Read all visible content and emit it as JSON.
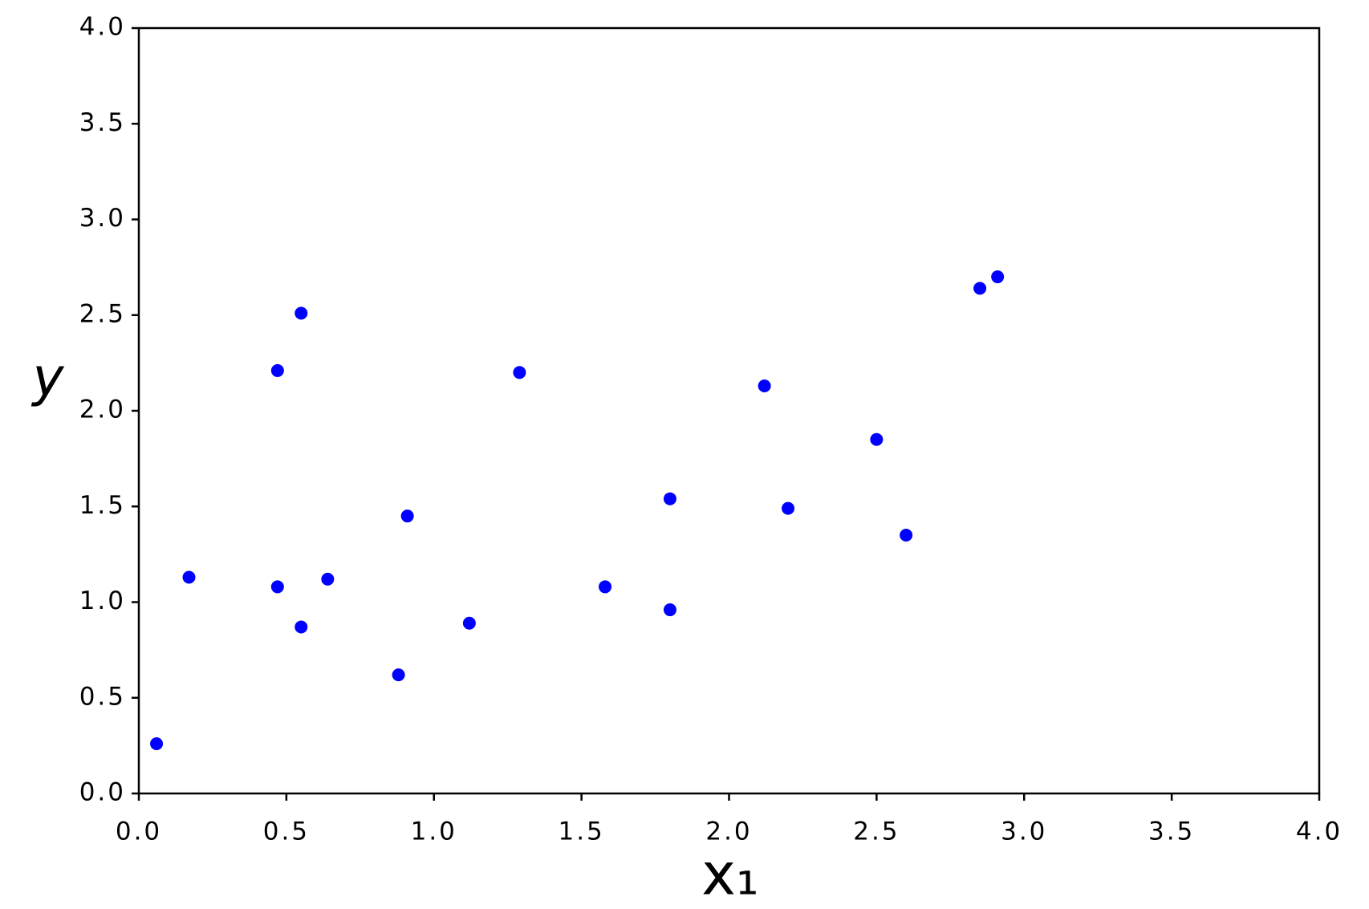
{
  "chart_data": {
    "type": "scatter",
    "xlabel": "x₁",
    "ylabel": "y",
    "color": "#0000ff",
    "series": [
      {
        "color": "#0000ff",
        "x": [
          0.06,
          0.17,
          0.47,
          0.55,
          0.47,
          0.55,
          0.64,
          0.88,
          0.91,
          1.12,
          1.29,
          1.58,
          1.8,
          1.8,
          2.12,
          2.2,
          2.5,
          2.6,
          2.85,
          2.91
        ],
        "values": [
          0.26,
          1.13,
          2.21,
          2.51,
          1.08,
          0.87,
          1.12,
          0.62,
          1.45,
          0.89,
          2.2,
          1.08,
          0.96,
          1.54,
          2.13,
          1.49,
          1.85,
          1.35,
          2.64,
          2.7
        ]
      }
    ],
    "xlim": [
      0,
      4
    ],
    "ylim": [
      0,
      4
    ],
    "xticks": [
      {
        "value": 0,
        "label": "0.0"
      },
      {
        "value": 0.5,
        "label": "0.5"
      },
      {
        "value": 1,
        "label": "1.0"
      },
      {
        "value": 1.5,
        "label": "1.5"
      },
      {
        "value": 2,
        "label": "2.0"
      },
      {
        "value": 2.5,
        "label": "2.5"
      },
      {
        "value": 3,
        "label": "3.0"
      },
      {
        "value": 3.5,
        "label": "3.5"
      },
      {
        "value": 4,
        "label": "4.0"
      }
    ],
    "yticks": [
      {
        "value": 0,
        "label": "0.0"
      },
      {
        "value": 0.5,
        "label": "0.5"
      },
      {
        "value": 1,
        "label": "1.0"
      },
      {
        "value": 1.5,
        "label": "1.5"
      },
      {
        "value": 2,
        "label": "2.0"
      },
      {
        "value": 2.5,
        "label": "2.5"
      },
      {
        "value": 3,
        "label": "3.0"
      },
      {
        "value": 3.5,
        "label": "3.5"
      },
      {
        "value": 4,
        "label": "4.0"
      }
    ],
    "grid": false
  }
}
